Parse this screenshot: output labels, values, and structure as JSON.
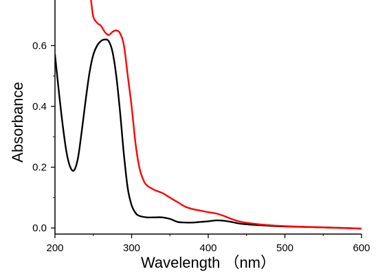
{
  "chart_data": {
    "type": "line",
    "title": "",
    "xlabel": "Wavelength （nm）",
    "ylabel": "Absorbance",
    "xlim": [
      200,
      600
    ],
    "ylim": [
      -0.02,
      0.75
    ],
    "xticks": [
      200,
      300,
      400,
      500,
      600
    ],
    "xtick_labels": [
      "200",
      "300",
      "400",
      "500",
      "600"
    ],
    "yticks": [
      0.0,
      0.2,
      0.4,
      0.6
    ],
    "ytick_labels": [
      "0.0",
      "0.2",
      "0.4",
      "0.6"
    ],
    "grid": false,
    "legend": false,
    "series": [
      {
        "color": "#000000",
        "points": [
          [
            200,
            0.57
          ],
          [
            205,
            0.45
          ],
          [
            210,
            0.34
          ],
          [
            215,
            0.25
          ],
          [
            220,
            0.2
          ],
          [
            225,
            0.19
          ],
          [
            230,
            0.23
          ],
          [
            235,
            0.32
          ],
          [
            240,
            0.42
          ],
          [
            245,
            0.51
          ],
          [
            250,
            0.57
          ],
          [
            255,
            0.6
          ],
          [
            260,
            0.615
          ],
          [
            265,
            0.62
          ],
          [
            270,
            0.615
          ],
          [
            275,
            0.58
          ],
          [
            280,
            0.5
          ],
          [
            285,
            0.38
          ],
          [
            290,
            0.24
          ],
          [
            295,
            0.13
          ],
          [
            300,
            0.075
          ],
          [
            305,
            0.05
          ],
          [
            310,
            0.04
          ],
          [
            320,
            0.035
          ],
          [
            330,
            0.035
          ],
          [
            340,
            0.035
          ],
          [
            350,
            0.03
          ],
          [
            360,
            0.02
          ],
          [
            370,
            0.018
          ],
          [
            380,
            0.018
          ],
          [
            390,
            0.02
          ],
          [
            400,
            0.022
          ],
          [
            410,
            0.025
          ],
          [
            420,
            0.024
          ],
          [
            430,
            0.02
          ],
          [
            440,
            0.015
          ],
          [
            450,
            0.012
          ],
          [
            475,
            0.008
          ],
          [
            500,
            0.005
          ],
          [
            550,
            0.002
          ],
          [
            600,
            -0.002
          ]
        ]
      },
      {
        "color": "#ff0000",
        "points": [
          [
            247,
            0.75
          ],
          [
            250,
            0.695
          ],
          [
            255,
            0.675
          ],
          [
            260,
            0.665
          ],
          [
            265,
            0.645
          ],
          [
            270,
            0.635
          ],
          [
            275,
            0.645
          ],
          [
            280,
            0.65
          ],
          [
            285,
            0.64
          ],
          [
            290,
            0.6
          ],
          [
            295,
            0.5
          ],
          [
            300,
            0.4
          ],
          [
            305,
            0.28
          ],
          [
            310,
            0.2
          ],
          [
            315,
            0.16
          ],
          [
            320,
            0.14
          ],
          [
            330,
            0.125
          ],
          [
            340,
            0.115
          ],
          [
            350,
            0.1
          ],
          [
            360,
            0.085
          ],
          [
            370,
            0.07
          ],
          [
            380,
            0.062
          ],
          [
            390,
            0.057
          ],
          [
            400,
            0.052
          ],
          [
            410,
            0.048
          ],
          [
            420,
            0.04
          ],
          [
            430,
            0.03
          ],
          [
            440,
            0.022
          ],
          [
            450,
            0.017
          ],
          [
            475,
            0.01
          ],
          [
            500,
            0.006
          ],
          [
            550,
            0.002
          ],
          [
            600,
            -0.002
          ]
        ]
      }
    ]
  }
}
